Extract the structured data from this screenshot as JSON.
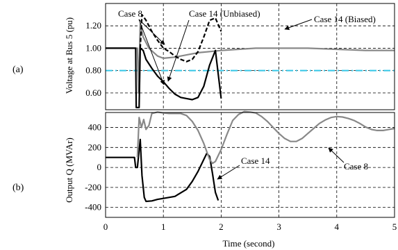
{
  "chart_data": [
    {
      "type": "line",
      "panel_label": "(a)",
      "title": "",
      "xlabel": "",
      "ylabel": "Voltage at Bus 5 (pu)",
      "xlim": [
        0,
        5
      ],
      "ylim": [
        0.45,
        1.4
      ],
      "yticks": [
        0.6,
        0.8,
        1.0,
        1.2
      ],
      "ytick_labels": [
        "0.60",
        "0.80",
        "1.00",
        "1.20"
      ],
      "xticks": [
        0,
        1,
        2,
        3,
        4,
        5
      ],
      "grid": "dashed",
      "reference_line": {
        "y": 0.8,
        "color": "#33c6e6",
        "style": "dash-dot"
      },
      "annotations": [
        {
          "text": "Case 8",
          "target": "Case 8"
        },
        {
          "text": "Case 14 (Unbiased)",
          "target": "Case 14 (Unbiased)"
        },
        {
          "text": "Case 14 (Biased)",
          "target": "Case 14 (Biased)"
        }
      ],
      "series": [
        {
          "name": "Case 8",
          "color": "#888888",
          "style": "solid",
          "x": [
            0,
            0.55,
            0.57,
            0.6,
            0.65,
            0.75,
            0.9,
            1.0,
            1.2,
            1.4,
            1.6,
            1.8,
            2.0,
            2.3,
            2.6,
            3.0,
            3.5,
            4.0,
            4.5,
            5.0
          ],
          "y": [
            1.0,
            1.0,
            0.6,
            1.22,
            1.1,
            1.0,
            0.93,
            0.91,
            0.92,
            0.94,
            0.96,
            0.97,
            0.98,
            0.99,
            1.0,
            1.0,
            1.0,
            0.99,
            0.98,
            0.98
          ]
        },
        {
          "name": "Case 14 (Unbiased)",
          "color": "#000000",
          "style": "solid",
          "x": [
            0,
            0.52,
            0.53,
            0.58,
            0.6,
            0.65,
            0.7,
            0.8,
            0.9,
            1.0,
            1.1,
            1.2,
            1.3,
            1.4,
            1.5,
            1.6,
            1.7,
            1.8,
            1.9,
            2.0
          ],
          "y": [
            1.0,
            1.0,
            0.47,
            0.47,
            1.0,
            0.98,
            0.9,
            0.82,
            0.75,
            0.7,
            0.64,
            0.59,
            0.56,
            0.55,
            0.54,
            0.56,
            0.66,
            0.85,
            0.98,
            0.55
          ]
        },
        {
          "name": "Case 14 (Biased)",
          "color": "#000000",
          "style": "dashed",
          "x": [
            0.6,
            0.63,
            0.7,
            0.8,
            0.9,
            1.0,
            1.1,
            1.2,
            1.3,
            1.4,
            1.5,
            1.6,
            1.7,
            1.8,
            1.9,
            2.0
          ],
          "y": [
            1.0,
            1.3,
            1.25,
            1.15,
            1.07,
            1.0,
            0.97,
            0.93,
            0.9,
            0.88,
            0.9,
            0.97,
            1.1,
            1.25,
            1.27,
            1.15
          ]
        }
      ]
    },
    {
      "type": "line",
      "panel_label": "(b)",
      "title": "",
      "xlabel": "Time (second)",
      "ylabel": "Output Q (MVAr)",
      "xlim": [
        0,
        5
      ],
      "ylim": [
        -500,
        550
      ],
      "yticks": [
        -400,
        -200,
        0,
        200,
        400
      ],
      "ytick_labels": [
        "-400",
        "-200",
        "0",
        "200",
        "400"
      ],
      "xticks": [
        0,
        1,
        2,
        3,
        4,
        5
      ],
      "xtick_labels": [
        "0",
        "1",
        "2",
        "3",
        "4",
        "5"
      ],
      "grid": "dashed",
      "annotations": [
        {
          "text": "Case 14",
          "target": "Case 14"
        },
        {
          "text": "Case 8",
          "target": "Case 8"
        }
      ],
      "series": [
        {
          "name": "Case 14",
          "color": "#000000",
          "style": "solid",
          "x": [
            0,
            0.5,
            0.52,
            0.55,
            0.6,
            0.63,
            0.67,
            0.7,
            0.8,
            0.9,
            1.0,
            1.2,
            1.4,
            1.5,
            1.6,
            1.7,
            1.75,
            1.8,
            1.85,
            1.9,
            1.95
          ],
          "y": [
            100,
            100,
            0,
            0,
            280,
            -80,
            -300,
            -340,
            -335,
            -320,
            -310,
            -290,
            -220,
            -140,
            -40,
            80,
            140,
            110,
            -60,
            -250,
            -330
          ]
        },
        {
          "name": "Case 8",
          "color": "#888888",
          "style": "solid",
          "x": [
            0.55,
            0.58,
            0.62,
            0.66,
            0.7,
            0.75,
            0.8,
            0.9,
            1.0,
            1.1,
            1.2,
            1.3,
            1.4,
            1.5,
            1.6,
            1.7,
            1.8,
            1.85,
            1.9,
            2.0,
            2.1,
            2.2,
            2.3,
            2.4,
            2.5,
            2.6,
            2.7,
            2.8,
            2.9,
            3.0,
            3.1,
            3.2,
            3.3,
            3.4,
            3.5,
            3.6,
            3.7,
            3.8,
            3.9,
            4.0,
            4.1,
            4.2,
            4.3,
            4.4,
            4.5,
            4.6,
            4.7,
            4.8,
            4.9,
            5.0
          ],
          "y": [
            100,
            500,
            400,
            480,
            380,
            420,
            540,
            555,
            545,
            540,
            540,
            540,
            520,
            460,
            370,
            240,
            80,
            40,
            60,
            180,
            330,
            470,
            530,
            560,
            555,
            545,
            510,
            460,
            400,
            340,
            290,
            260,
            260,
            290,
            340,
            390,
            440,
            475,
            500,
            510,
            505,
            490,
            470,
            440,
            405,
            380,
            370,
            370,
            380,
            390
          ]
        }
      ]
    }
  ]
}
